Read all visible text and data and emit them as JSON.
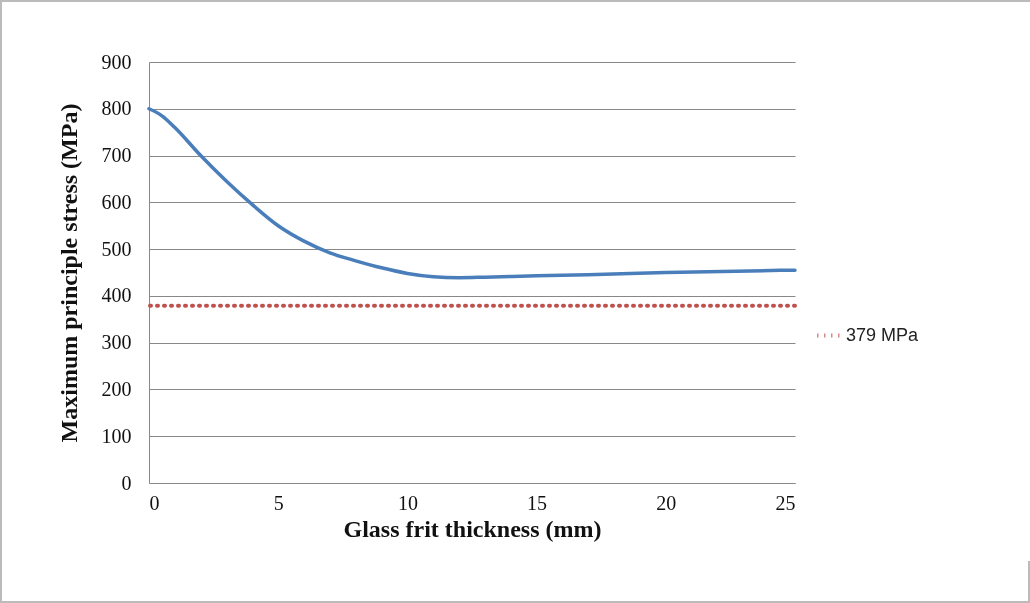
{
  "chart_data": {
    "type": "line",
    "xlabel": "Glass frit thickness (mm)",
    "ylabel": "Maximum principle stress (MPa)",
    "x": [
      0,
      0.5,
      1,
      2,
      3,
      4,
      5,
      6,
      7,
      8,
      9,
      10,
      11,
      12,
      13,
      15,
      17,
      20,
      25
    ],
    "series": [
      {
        "color": "#4a7ebb",
        "values": [
          800,
          785,
          760,
          700,
          645,
          595,
          550,
          517,
          492,
          475,
          460,
          448,
          441,
          439,
          440,
          443,
          445,
          450,
          455
        ]
      }
    ],
    "ref_lines": [
      {
        "axis": "y",
        "value": 379,
        "label": "379 MPa",
        "color": "#c0504d",
        "line_style": "dotted"
      }
    ],
    "xlim": [
      0,
      25
    ],
    "xticks": [
      0,
      5,
      10,
      15,
      20,
      25
    ],
    "ylim": [
      0,
      900
    ],
    "yticks": [
      0,
      100,
      200,
      300,
      400,
      500,
      600,
      700,
      800,
      900
    ],
    "grid": "y",
    "legend": "right",
    "marker": "none",
    "line_style": "solid"
  }
}
